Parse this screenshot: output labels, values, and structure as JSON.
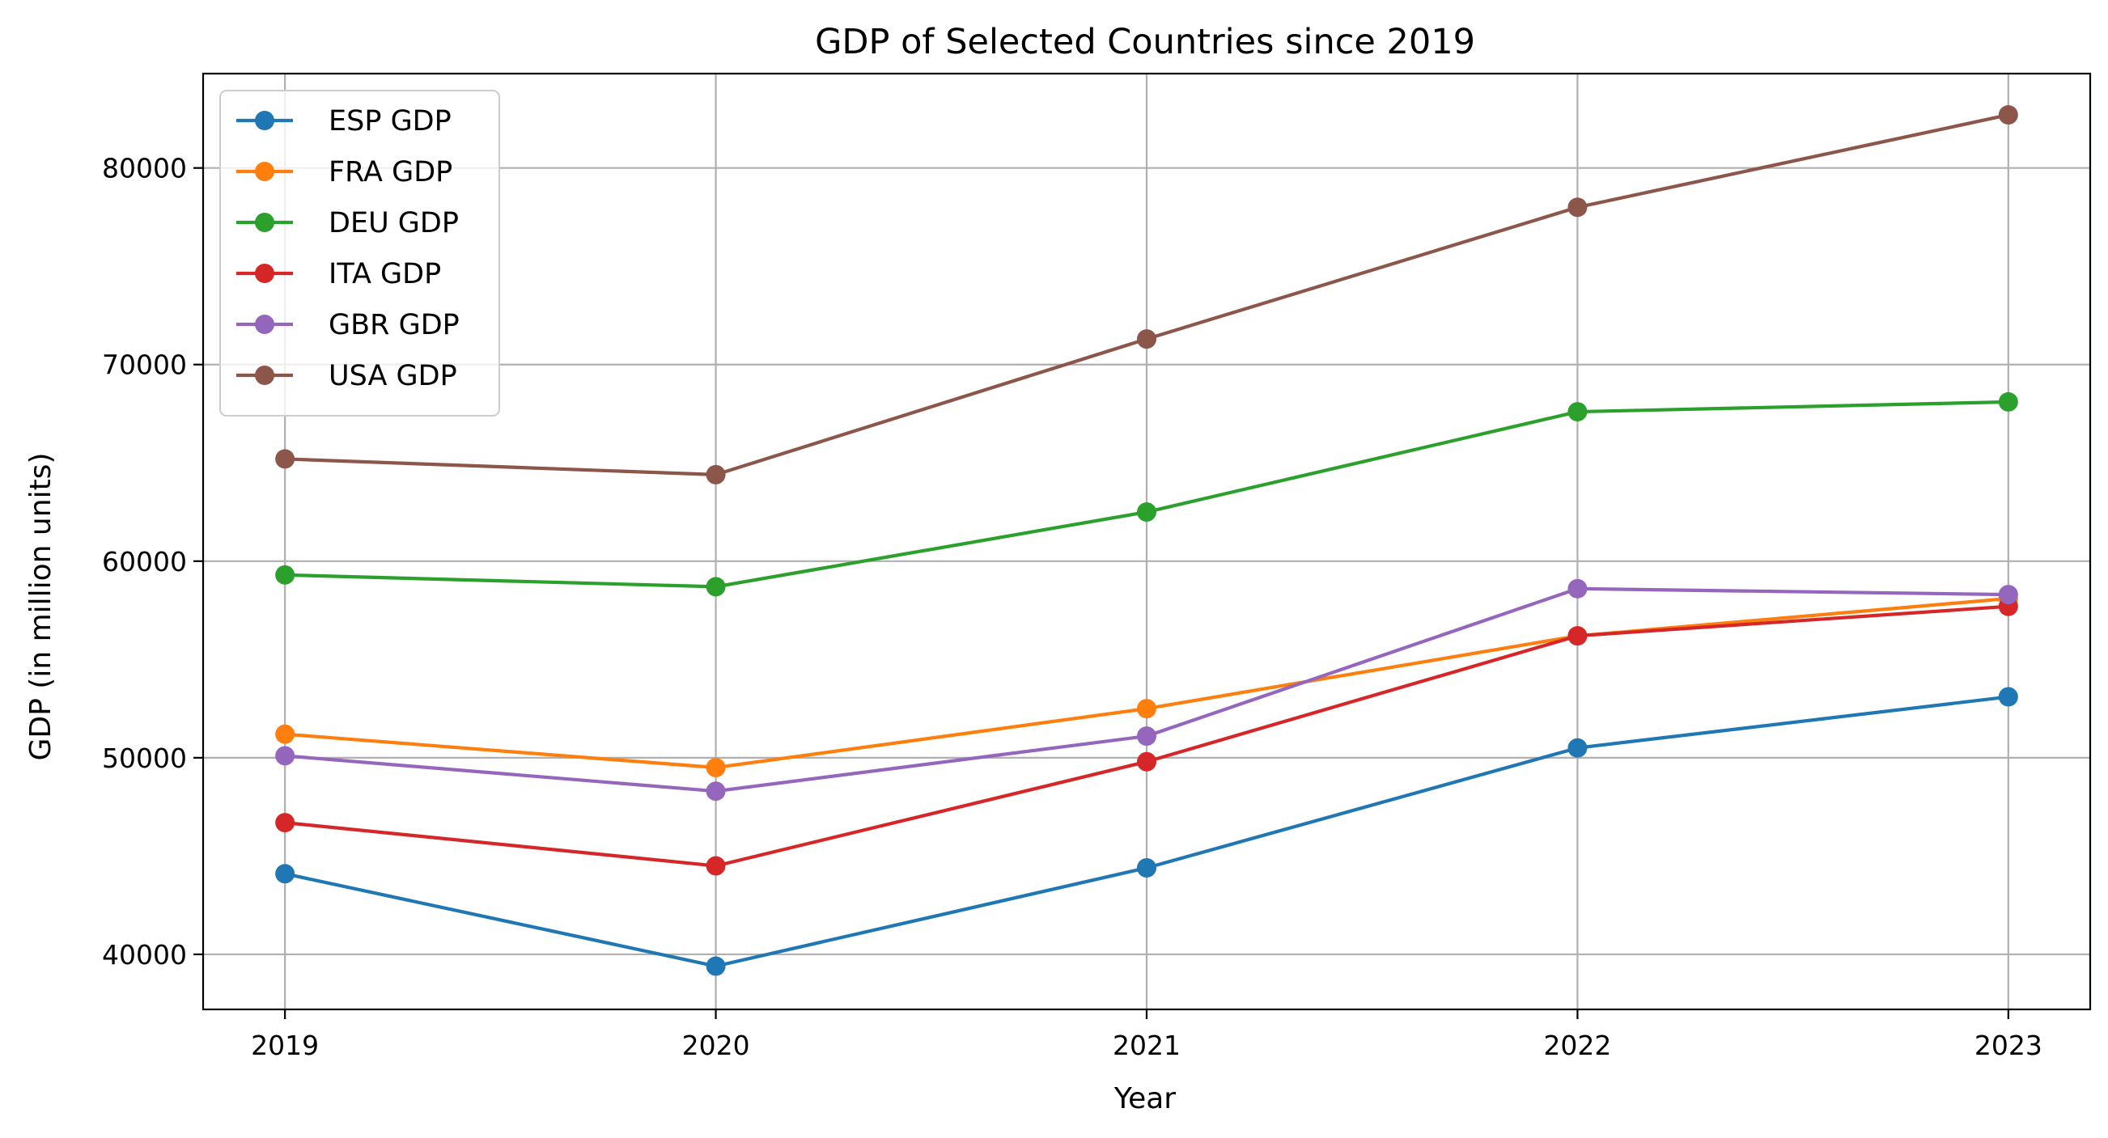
{
  "chart_data": {
    "type": "line",
    "title": "GDP of Selected Countries since 2019",
    "xlabel": "Year",
    "ylabel": "GDP (in million units)",
    "x": [
      2019,
      2020,
      2021,
      2022,
      2023
    ],
    "x_tick_labels": [
      "2019",
      "2020",
      "2021",
      "2022",
      "2023"
    ],
    "y_ticks": [
      40000,
      50000,
      60000,
      70000,
      80000
    ],
    "y_tick_labels": [
      "40000",
      "50000",
      "60000",
      "70000",
      "80000"
    ],
    "ylim": [
      37200,
      84800
    ],
    "grid": true,
    "legend_position": "top-left",
    "series": [
      {
        "name": "ESP GDP",
        "color": "#1f77b4",
        "values": [
          44100,
          39400,
          44400,
          50500,
          53100
        ]
      },
      {
        "name": "FRA GDP",
        "color": "#ff7f0e",
        "values": [
          51200,
          49500,
          52500,
          56200,
          58100
        ]
      },
      {
        "name": "DEU GDP",
        "color": "#2ca02c",
        "values": [
          59300,
          58700,
          62500,
          67600,
          68100
        ]
      },
      {
        "name": "ITA GDP",
        "color": "#d62728",
        "values": [
          46700,
          44500,
          49800,
          56200,
          57700
        ]
      },
      {
        "name": "GBR GDP",
        "color": "#9467bd",
        "values": [
          50100,
          48300,
          51100,
          58600,
          58300
        ]
      },
      {
        "name": "USA GDP",
        "color": "#8c564b",
        "values": [
          65200,
          64400,
          71300,
          78000,
          82700
        ]
      }
    ]
  }
}
